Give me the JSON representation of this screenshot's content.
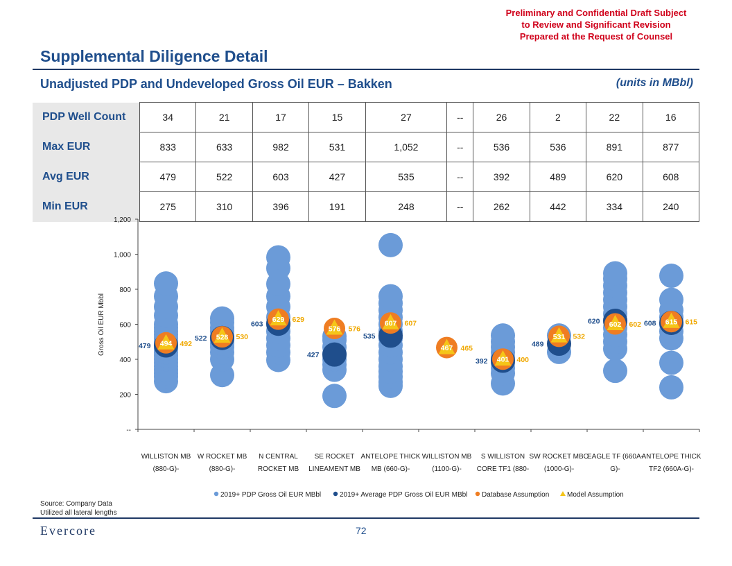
{
  "header": {
    "confidential": [
      "Preliminary and Confidential Draft Subject",
      "to Review and Significant Revision",
      "Prepared at the Request of Counsel"
    ],
    "title": "Supplemental Diligence Detail",
    "subtitle": "Unadjusted PDP and Undeveloped Gross Oil EUR – Bakken",
    "units": "(units in MBbl)"
  },
  "table": {
    "rows": [
      {
        "label": "PDP Well Count",
        "values": [
          "34",
          "21",
          "17",
          "15",
          "27",
          "--",
          "26",
          "2",
          "22",
          "16"
        ]
      },
      {
        "label": "Max EUR",
        "values": [
          "833",
          "633",
          "982",
          "531",
          "1,052",
          "--",
          "536",
          "536",
          "891",
          "877"
        ]
      },
      {
        "label": "Avg EUR",
        "values": [
          "479",
          "522",
          "603",
          "427",
          "535",
          "--",
          "392",
          "489",
          "620",
          "608"
        ]
      },
      {
        "label": "Min EUR",
        "values": [
          "275",
          "310",
          "396",
          "191",
          "248",
          "--",
          "262",
          "442",
          "334",
          "240"
        ]
      }
    ]
  },
  "chart_data": {
    "type": "scatter",
    "ylabel": "Gross Oil EUR Mbbl",
    "ylim": [
      0,
      1200
    ],
    "yticks": [
      0,
      200,
      400,
      600,
      800,
      1000,
      1200
    ],
    "ytick_labels": [
      "--",
      "200",
      "400",
      "600",
      "800",
      "1,000",
      "1,200"
    ],
    "categories": [
      [
        "WILLISTON MB",
        "(880-G)-"
      ],
      [
        "W ROCKET MB",
        "(880-G)-"
      ],
      [
        "N CENTRAL",
        "ROCKET MB"
      ],
      [
        "SE ROCKET",
        "LINEAMENT MB"
      ],
      [
        "ANTELOPE THICK",
        "MB (660-G)-"
      ],
      [
        "WILLISTON MB",
        "(1100-G)-"
      ],
      [
        "S WILLISTON",
        "CORE TF1 (880-"
      ],
      [
        "SW ROCKET MBO",
        "(1000-G)-"
      ],
      [
        "EAGLE TF (660A-",
        "G)-"
      ],
      [
        "ANTELOPE THICK",
        "TF2 (660A-G)-"
      ]
    ],
    "series": [
      {
        "name": "2019+ PDP Gross Oil EUR MBbl",
        "color": "#6b9bd8",
        "values": [
          [
            275,
            300,
            320,
            340,
            360,
            380,
            400,
            420,
            440,
            460,
            480,
            500,
            520,
            540,
            560,
            580,
            600,
            650,
            700,
            760,
            833
          ],
          [
            310,
            400,
            440,
            470,
            490,
            510,
            530,
            560,
            580,
            610,
            633
          ],
          [
            396,
            440,
            480,
            520,
            560,
            600,
            640,
            700,
            760,
            830,
            920,
            982
          ],
          [
            191,
            340,
            370,
            400,
            430,
            470,
            510,
            531
          ],
          [
            248,
            270,
            300,
            330,
            360,
            400,
            440,
            480,
            520,
            560,
            600,
            640,
            680,
            720,
            760,
            1052
          ],
          [],
          [
            262,
            320,
            350,
            380,
            410,
            440,
            470,
            500,
            536
          ],
          [
            442,
            536
          ],
          [
            334,
            460,
            500,
            540,
            580,
            620,
            660,
            700,
            740,
            780,
            820,
            860,
            891
          ],
          [
            240,
            380,
            520,
            560,
            600,
            640,
            680,
            740,
            877
          ]
        ]
      },
      {
        "name": "2019+ Average PDP Gross Oil EUR MBbl",
        "color": "#1f4e8c",
        "values": [
          479,
          522,
          603,
          427,
          535,
          null,
          392,
          489,
          620,
          608
        ]
      },
      {
        "name": "Database Assumption",
        "color": "#ef7d22",
        "values": [
          494,
          528,
          629,
          576,
          607,
          467,
          401,
          531,
          602,
          615
        ]
      },
      {
        "name": "Model Assumption",
        "color": "#f5c518",
        "values": [
          492,
          530,
          629,
          576,
          607,
          465,
          400,
          532,
          602,
          615
        ]
      }
    ]
  },
  "footer": {
    "source": "Source: Company Data",
    "note": "Utilized all lateral lengths",
    "logo": "Evercore",
    "page": "72"
  }
}
